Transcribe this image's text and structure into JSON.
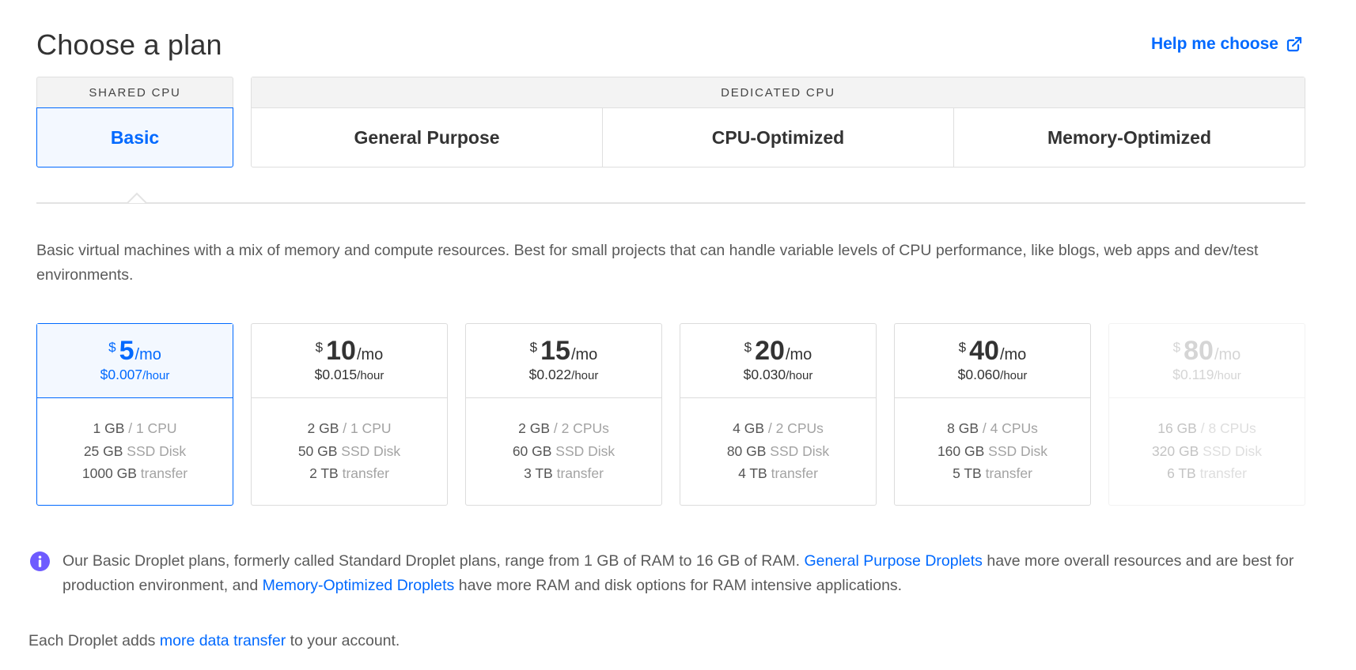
{
  "header": {
    "title": "Choose a plan",
    "help_label": "Help me choose"
  },
  "cpu_types": {
    "shared": {
      "heading": "SHARED CPU",
      "tab": "Basic"
    },
    "dedicated": {
      "heading": "DEDICATED CPU",
      "tabs": [
        "General Purpose",
        "CPU-Optimized",
        "Memory-Optimized"
      ]
    }
  },
  "description": "Basic virtual machines with a mix of memory and compute resources. Best for small projects that can handle variable levels of CPU performance, like blogs, web apps and dev/test environments.",
  "plans": [
    {
      "currency": "$",
      "price": "5",
      "period": "/mo",
      "hourly": "$0.007",
      "hourly_unit": "/hour",
      "mem": "1 GB",
      "cpu": " / 1 CPU",
      "disk": "25 GB",
      "disk_unit": " SSD Disk",
      "transfer": "1000 GB",
      "transfer_unit": " transfer"
    },
    {
      "currency": "$",
      "price": "10",
      "period": "/mo",
      "hourly": "$0.015",
      "hourly_unit": "/hour",
      "mem": "2 GB",
      "cpu": " / 1 CPU",
      "disk": "50 GB",
      "disk_unit": " SSD Disk",
      "transfer": "2 TB",
      "transfer_unit": " transfer"
    },
    {
      "currency": "$",
      "price": "15",
      "period": "/mo",
      "hourly": "$0.022",
      "hourly_unit": "/hour",
      "mem": "2 GB",
      "cpu": " / 2 CPUs",
      "disk": "60 GB",
      "disk_unit": " SSD Disk",
      "transfer": "3 TB",
      "transfer_unit": " transfer"
    },
    {
      "currency": "$",
      "price": "20",
      "period": "/mo",
      "hourly": "$0.030",
      "hourly_unit": "/hour",
      "mem": "4 GB",
      "cpu": " / 2 CPUs",
      "disk": "80 GB",
      "disk_unit": " SSD Disk",
      "transfer": "4 TB",
      "transfer_unit": " transfer"
    },
    {
      "currency": "$",
      "price": "40",
      "period": "/mo",
      "hourly": "$0.060",
      "hourly_unit": "/hour",
      "mem": "8 GB",
      "cpu": " / 4 CPUs",
      "disk": "160 GB",
      "disk_unit": " SSD Disk",
      "transfer": "5 TB",
      "transfer_unit": " transfer"
    },
    {
      "currency": "$",
      "price": "80",
      "period": "/mo",
      "hourly": "$0.119",
      "hourly_unit": "/hour",
      "mem": "16 GB",
      "cpu": " / 8 CPUs",
      "disk": "320 GB",
      "disk_unit": " SSD Disk",
      "transfer": "6 TB",
      "transfer_unit": " transfer"
    }
  ],
  "info": {
    "text1": "Our Basic Droplet plans, formerly called Standard Droplet plans, range from 1 GB of RAM to 16 GB of RAM. ",
    "link1": "General Purpose Droplets",
    "text2": " have more overall resources and are best for production environment, and ",
    "link2": "Memory-Optimized Droplets",
    "text3": " have more RAM and disk options for RAM intensive applications."
  },
  "footer": {
    "text1": "Each Droplet adds ",
    "link": "more data transfer",
    "text2": " to your account."
  },
  "colors": {
    "accent": "#0069ff",
    "info_icon": "#6e5bff"
  }
}
